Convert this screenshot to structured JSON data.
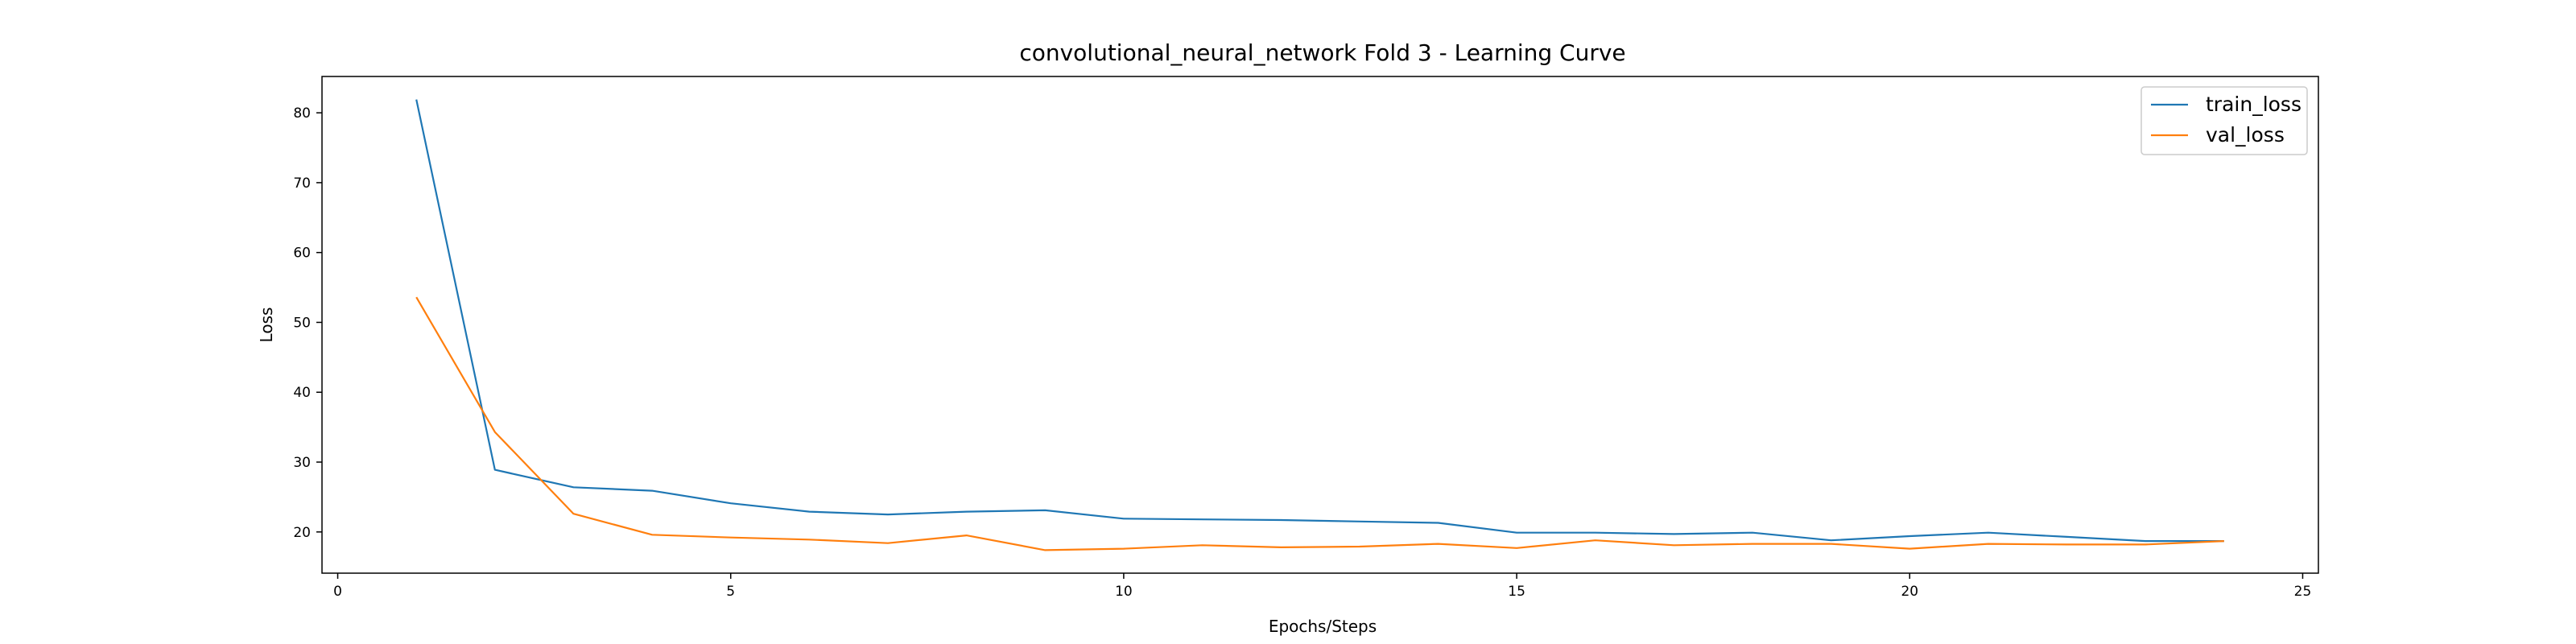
{
  "chart_data": {
    "type": "line",
    "title": "convolutional_neural_network Fold 3 - Learning Curve",
    "xlabel": "Epochs/Steps",
    "ylabel": "Loss",
    "xlim": [
      -0.2,
      25.2
    ],
    "ylim": [
      14.1,
      85.2
    ],
    "xticks": [
      0,
      5,
      10,
      15,
      20,
      25
    ],
    "yticks": [
      20,
      30,
      40,
      50,
      60,
      70,
      80
    ],
    "grid": false,
    "legend_position": "top-right",
    "x": [
      1,
      2,
      3,
      4,
      5,
      6,
      7,
      8,
      9,
      10,
      11,
      12,
      13,
      14,
      15,
      16,
      17,
      18,
      19,
      20,
      21,
      22,
      23,
      24
    ],
    "series": [
      {
        "name": "train_loss",
        "color": "#1f77b4",
        "values": [
          81.9,
          28.9,
          26.4,
          25.9,
          24.1,
          22.9,
          22.5,
          22.9,
          23.1,
          21.9,
          21.8,
          21.7,
          21.5,
          21.3,
          19.9,
          19.9,
          19.7,
          19.9,
          18.8,
          19.4,
          19.9,
          19.3,
          18.7,
          18.7
        ]
      },
      {
        "name": "val_loss",
        "color": "#ff7f0e",
        "values": [
          53.6,
          34.3,
          22.6,
          19.6,
          19.2,
          18.9,
          18.4,
          19.5,
          17.4,
          17.6,
          18.1,
          17.8,
          17.9,
          18.3,
          17.7,
          18.8,
          18.1,
          18.3,
          18.3,
          17.6,
          18.3,
          18.2,
          18.2,
          18.7
        ]
      }
    ]
  }
}
